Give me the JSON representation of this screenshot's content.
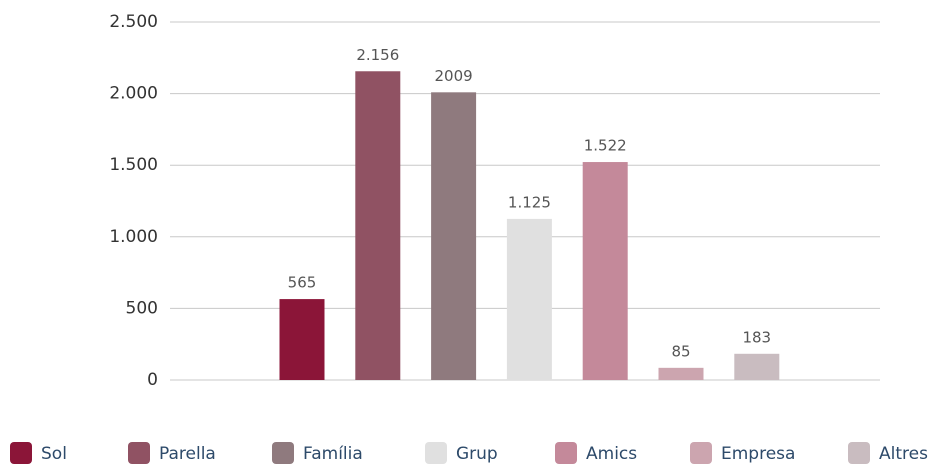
{
  "chart_data": {
    "type": "bar",
    "series": [
      {
        "name": "Sol",
        "color": "#8b1538",
        "values": [
          565
        ]
      },
      {
        "name": "Parella",
        "color": "#905263",
        "values": [
          2156
        ],
        "value_labels": [
          "2.156"
        ]
      },
      {
        "name": "Família",
        "color": "#8f7a7e",
        "values": [
          2009
        ]
      },
      {
        "name": "Grup",
        "color": "#e0e0e0",
        "values": [
          1125
        ],
        "value_labels": [
          "1.125"
        ]
      },
      {
        "name": "Amics",
        "color": "#c4899a",
        "values": [
          1522
        ],
        "value_labels": [
          "1.522"
        ]
      },
      {
        "name": "Empresa",
        "color": "#cca5af",
        "values": [
          85
        ]
      },
      {
        "name": "Altres",
        "color": "#c9bcc0",
        "values": [
          183
        ]
      }
    ],
    "ylim": [
      0,
      2500
    ],
    "yticks": [
      0,
      500,
      {
        "value": 1000,
        "label": "1.000"
      },
      {
        "value": 1500,
        "label": "1.500"
      },
      {
        "value": 2000,
        "label": "2.000"
      },
      {
        "value": 2500,
        "label": "2.500"
      }
    ],
    "grid": true,
    "legend": "bottom"
  }
}
